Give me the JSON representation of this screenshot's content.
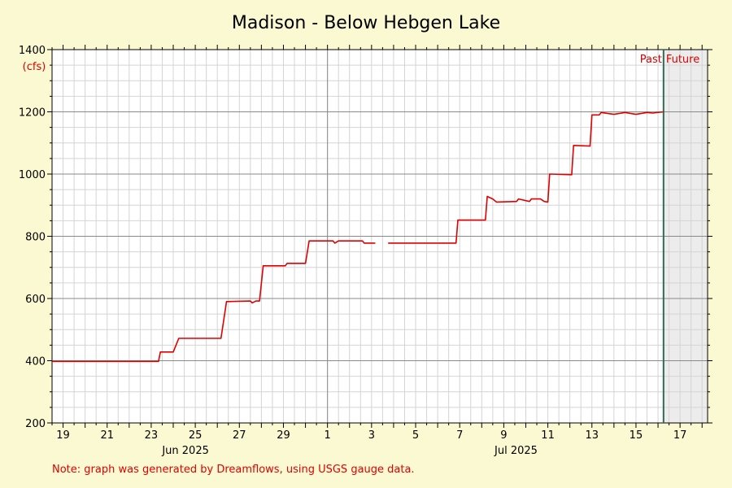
{
  "chart_data": {
    "type": "line",
    "title": "Madison - Below Hebgen Lake",
    "ylabel": "(cfs)",
    "xlabel": "",
    "ylim": [
      200,
      1400
    ],
    "yticks": [
      200,
      400,
      600,
      800,
      1000,
      1200,
      1400
    ],
    "grid": true,
    "x_month_labels": [
      {
        "label": "Jun 2025",
        "x": "2025-06-25"
      },
      {
        "label": "Jul 2025",
        "x": "2025-07-10"
      }
    ],
    "x_day_ticks": [
      {
        "label": "19",
        "x": "2025-06-19"
      },
      {
        "label": "21",
        "x": "2025-06-21"
      },
      {
        "label": "23",
        "x": "2025-06-23"
      },
      {
        "label": "25",
        "x": "2025-06-25"
      },
      {
        "label": "27",
        "x": "2025-06-27"
      },
      {
        "label": "29",
        "x": "2025-06-29"
      },
      {
        "label": "1",
        "x": "2025-07-01"
      },
      {
        "label": "3",
        "x": "2025-07-03"
      },
      {
        "label": "5",
        "x": "2025-07-05"
      },
      {
        "label": "7",
        "x": "2025-07-07"
      },
      {
        "label": "9",
        "x": "2025-07-09"
      },
      {
        "label": "11",
        "x": "2025-07-11"
      },
      {
        "label": "13",
        "x": "2025-07-13"
      },
      {
        "label": "15",
        "x": "2025-07-15"
      },
      {
        "label": "17",
        "x": "2025-07-17"
      }
    ],
    "xlim": [
      "2025-06-18 12:00",
      "2025-07-18 06:00"
    ],
    "month_divider": "2025-07-01",
    "now": "2025-07-16 06:00",
    "past_label": "Past",
    "future_label": "Future",
    "series": [
      {
        "color": "#e00000",
        "points": [
          [
            "2025-06-18 12:00",
            398
          ],
          [
            "2025-06-23 08:00",
            398
          ],
          [
            "2025-06-23 10:00",
            428
          ],
          [
            "2025-06-24 00:00",
            428
          ],
          [
            "2025-06-24 06:00",
            472
          ],
          [
            "2025-06-26 04:00",
            472
          ],
          [
            "2025-06-26 10:00",
            590
          ],
          [
            "2025-06-27 12:00",
            592
          ],
          [
            "2025-06-27 14:00",
            586
          ],
          [
            "2025-06-27 18:00",
            592
          ],
          [
            "2025-06-27 22:00",
            592
          ],
          [
            "2025-06-28 02:00",
            705
          ],
          [
            "2025-06-29 02:00",
            705
          ],
          [
            "2025-06-29 04:00",
            713
          ],
          [
            "2025-06-30 00:00",
            713
          ],
          [
            "2025-06-30 04:00",
            785
          ],
          [
            "2025-07-01 06:00",
            785
          ],
          [
            "2025-07-01 08:00",
            778
          ],
          [
            "2025-07-01 12:00",
            785
          ],
          [
            "2025-07-02 14:00",
            785
          ],
          [
            "2025-07-02 16:00",
            778
          ],
          [
            "2025-07-03 02:00",
            778
          ],
          [
            "2025-07-03 04:00",
            778
          ],
          [
            "2025-07-03 12:00",
            null
          ],
          [
            "2025-07-03 18:00",
            778
          ],
          [
            "2025-07-06 20:00",
            778
          ],
          [
            "2025-07-06 22:00",
            852
          ],
          [
            "2025-07-08 04:00",
            852
          ],
          [
            "2025-07-08 06:00",
            928
          ],
          [
            "2025-07-08 12:00",
            920
          ],
          [
            "2025-07-08 16:00",
            910
          ],
          [
            "2025-07-09 14:00",
            912
          ],
          [
            "2025-07-09 16:00",
            920
          ],
          [
            "2025-07-10 04:00",
            912
          ],
          [
            "2025-07-10 06:00",
            920
          ],
          [
            "2025-07-10 16:00",
            920
          ],
          [
            "2025-07-10 20:00",
            912
          ],
          [
            "2025-07-11 00:00",
            910
          ],
          [
            "2025-07-11 02:00",
            1000
          ],
          [
            "2025-07-12 02:00",
            998
          ],
          [
            "2025-07-12 04:00",
            1092
          ],
          [
            "2025-07-12 22:00",
            1090
          ],
          [
            "2025-07-13 00:00",
            1190
          ],
          [
            "2025-07-13 08:00",
            1190
          ],
          [
            "2025-07-13 10:00",
            1198
          ],
          [
            "2025-07-14 00:00",
            1192
          ],
          [
            "2025-07-14 12:00",
            1198
          ],
          [
            "2025-07-15 00:00",
            1192
          ],
          [
            "2025-07-15 12:00",
            1198
          ],
          [
            "2025-07-15 18:00",
            1196
          ],
          [
            "2025-07-16 06:00",
            1200
          ]
        ]
      }
    ],
    "note": "Note: graph was generated by Dreamflows, using USGS gauge data."
  },
  "colors": {
    "background": "#fbf9d2",
    "plot_background": "#ffffff",
    "future_background": "#ececec",
    "grid_minor": "#d4d4d4",
    "grid_major": "#8a8a8a",
    "line": "#e00000",
    "now_line": "#2e6b52",
    "label_red": "#e00000"
  }
}
